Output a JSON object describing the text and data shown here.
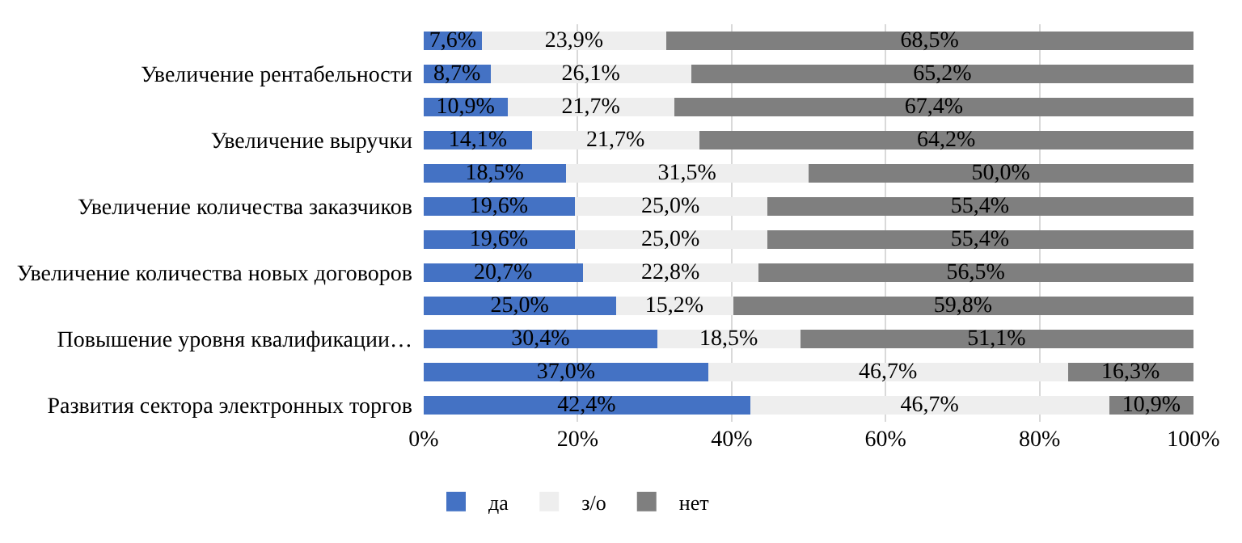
{
  "chart_data": {
    "type": "bar",
    "orientation": "horizontal",
    "stacked": true,
    "categories": [
      null,
      "Увеличение рентабельности",
      null,
      "Увеличение выручки",
      null,
      "Увеличение количества заказчиков",
      null,
      "Увеличение количества новых договоров",
      null,
      "Повышение уровня квалификации…",
      null,
      "Развития сектора электронных торгов"
    ],
    "series": [
      {
        "name": "да",
        "color": "#4472c4",
        "values": [
          7.6,
          8.7,
          10.9,
          14.1,
          18.5,
          19.6,
          19.6,
          20.7,
          25.0,
          30.4,
          37.0,
          42.4
        ],
        "value_labels": [
          "7,6%",
          "8,7%",
          "10,9%",
          "14,1%",
          "18,5%",
          "19,6%",
          "19,6%",
          "20,7%",
          "25,0%",
          "30,4%",
          "37,0%",
          "42,4%"
        ]
      },
      {
        "name": "з/о",
        "color": "#eeeeee",
        "values": [
          23.9,
          26.1,
          21.7,
          21.7,
          31.5,
          25.0,
          25.0,
          22.8,
          15.2,
          18.5,
          46.7,
          46.7
        ],
        "value_labels": [
          "23,9%",
          "26,1%",
          "21,7%",
          "21,7%",
          "31,5%",
          "25,0%",
          "25,0%",
          "22,8%",
          "15,2%",
          "18,5%",
          "46,7%",
          "46,7%"
        ]
      },
      {
        "name": "нет",
        "color": "#7f7f7f",
        "values": [
          68.5,
          65.2,
          67.4,
          64.2,
          50.0,
          55.4,
          55.4,
          56.5,
          59.8,
          51.1,
          16.3,
          10.9
        ],
        "value_labels": [
          "68,5%",
          "65,2%",
          "67,4%",
          "64,2%",
          "50,0%",
          "55,4%",
          "55,4%",
          "56,5%",
          "59,8%",
          "51,1%",
          "16,3%",
          "10,9%"
        ]
      }
    ],
    "xlim": [
      0,
      100
    ],
    "xticks": [
      {
        "value": 0,
        "label": "0%"
      },
      {
        "value": 20,
        "label": "20%"
      },
      {
        "value": 40,
        "label": "40%"
      },
      {
        "value": 60,
        "label": "60%"
      },
      {
        "value": 80,
        "label": "80%"
      },
      {
        "value": 100,
        "label": "100%"
      }
    ],
    "grid": "x",
    "legend": "bottom left"
  }
}
